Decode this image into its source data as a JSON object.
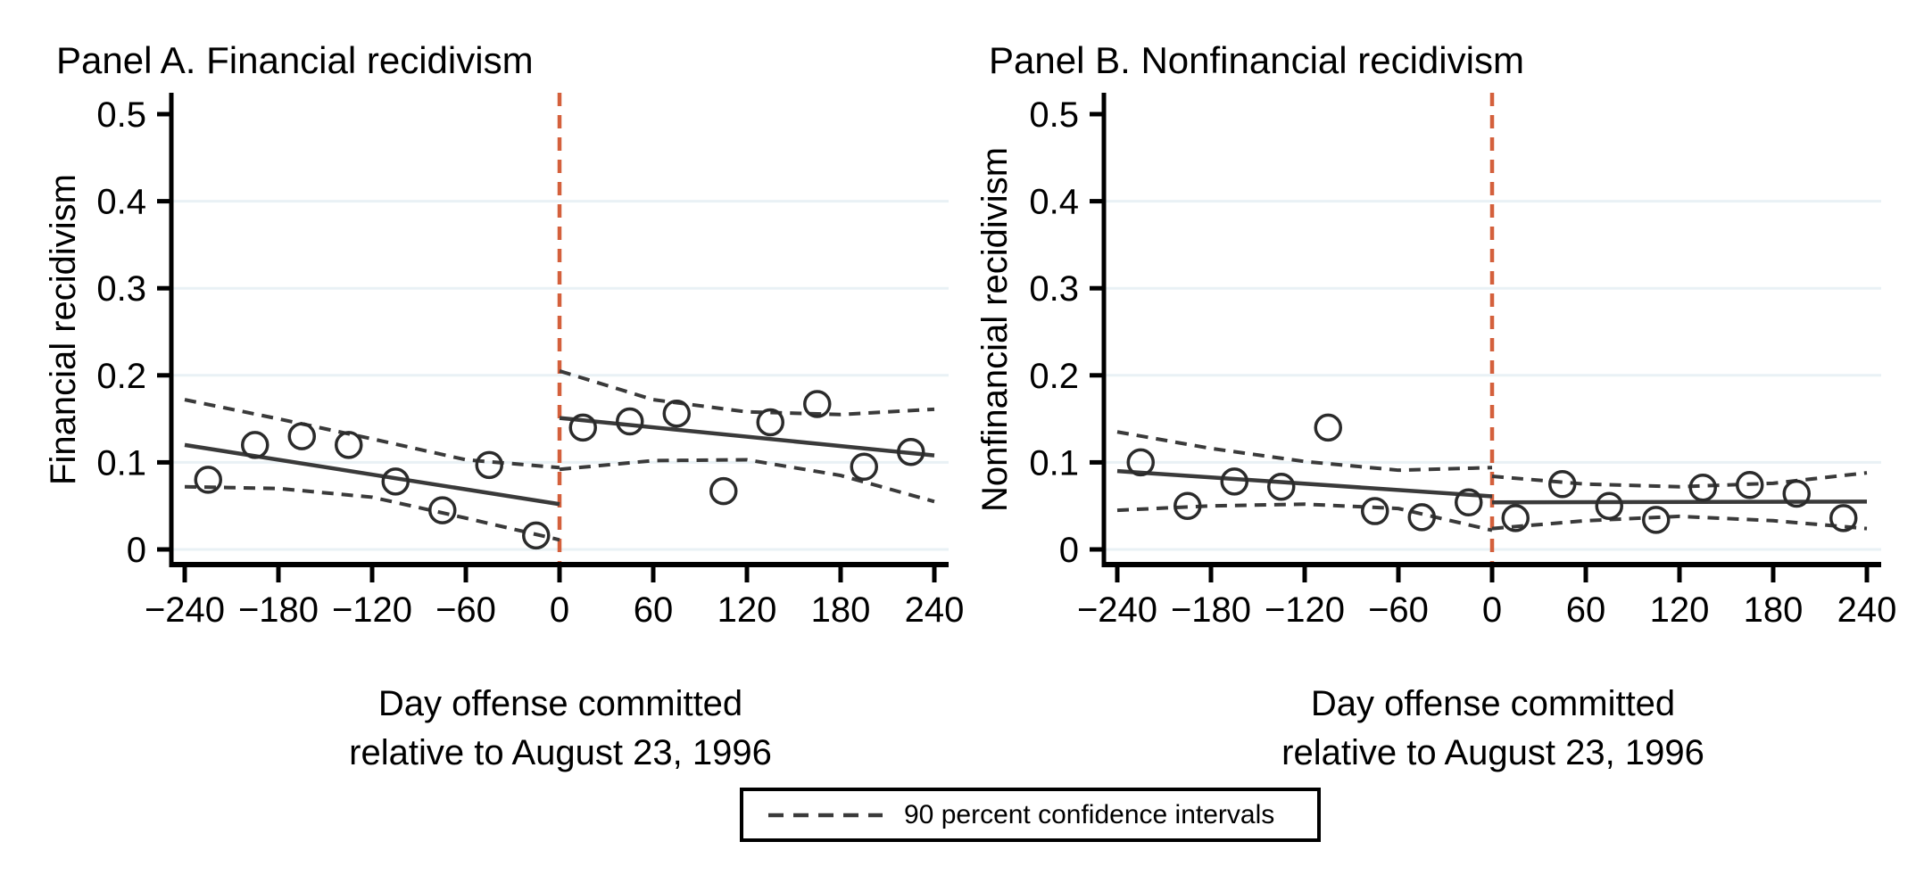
{
  "figure": {
    "legend": {
      "label": "90 percent confidence intervals"
    },
    "colors": {
      "cutoff_line": "#d4603c",
      "series_line": "#3a3a3a",
      "marker": "#2b2b2b",
      "grid_line": "#e9f1f5",
      "axis": "#000000",
      "background": "#ffffff"
    }
  },
  "chart_data": [
    {
      "type": "scatter",
      "panel_label": "Panel A. Financial recidivism",
      "ylabel": "Financial recidivism",
      "xlabel_lines": [
        "Day offense committed",
        "relative to August 23, 1996"
      ],
      "xlim": [
        -249,
        249
      ],
      "ylim": [
        0,
        0.5
      ],
      "xticks": [
        -240,
        -180,
        -120,
        -60,
        0,
        60,
        120,
        180,
        240
      ],
      "xtick_labels": [
        "−240",
        "−180",
        "−120",
        "−60",
        "0",
        "60",
        "120",
        "180",
        "240"
      ],
      "yticks": [
        0,
        0.1,
        0.2,
        0.3,
        0.4,
        0.5
      ],
      "ytick_labels": [
        "0",
        "0.1",
        "0.2",
        "0.3",
        "0.4",
        "0.5"
      ],
      "grid": true,
      "legend_position": "bottom-center",
      "cutoff_x": 0,
      "points": [
        [
          -225,
          0.08
        ],
        [
          -195,
          0.12
        ],
        [
          -165,
          0.13
        ],
        [
          -135,
          0.12
        ],
        [
          -105,
          0.078
        ],
        [
          -75,
          0.045
        ],
        [
          -45,
          0.097
        ],
        [
          -15,
          0.016
        ],
        [
          15,
          0.14
        ],
        [
          45,
          0.147
        ],
        [
          75,
          0.156
        ],
        [
          105,
          0.067
        ],
        [
          135,
          0.146
        ],
        [
          165,
          0.167
        ],
        [
          195,
          0.095
        ],
        [
          225,
          0.112
        ]
      ],
      "fit_lines": [
        {
          "x": [
            -240,
            0
          ],
          "y": [
            0.12,
            0.052
          ]
        },
        {
          "x": [
            0,
            240
          ],
          "y": [
            0.151,
            0.108
          ]
        }
      ],
      "ci_lines": [
        {
          "x": [
            -240,
            -180,
            -120,
            -60,
            0
          ],
          "y": [
            0.172,
            0.15,
            0.127,
            0.103,
            0.094
          ]
        },
        {
          "x": [
            -240,
            -180,
            -120,
            -60,
            0
          ],
          "y": [
            0.072,
            0.07,
            0.06,
            0.036,
            0.011
          ]
        },
        {
          "x": [
            0,
            60,
            120,
            180,
            240
          ],
          "y": [
            0.205,
            0.172,
            0.158,
            0.155,
            0.161
          ]
        },
        {
          "x": [
            0,
            60,
            120,
            180,
            240
          ],
          "y": [
            0.092,
            0.102,
            0.103,
            0.085,
            0.055
          ]
        }
      ]
    },
    {
      "type": "scatter",
      "panel_label": "Panel B. Nonfinancial recidivism",
      "ylabel": "Nonfinancial recidivism",
      "xlabel_lines": [
        "Day offense committed",
        "relative to August 23, 1996"
      ],
      "xlim": [
        -249,
        249
      ],
      "ylim": [
        0,
        0.5
      ],
      "xticks": [
        -240,
        -180,
        -120,
        -60,
        0,
        60,
        120,
        180,
        240
      ],
      "xtick_labels": [
        "−240",
        "−180",
        "−120",
        "−60",
        "0",
        "60",
        "120",
        "180",
        "240"
      ],
      "yticks": [
        0,
        0.1,
        0.2,
        0.3,
        0.4,
        0.5
      ],
      "ytick_labels": [
        "0",
        "0.1",
        "0.2",
        "0.3",
        "0.4",
        "0.5"
      ],
      "grid": true,
      "legend_position": "bottom-center",
      "cutoff_x": 0,
      "points": [
        [
          -225,
          0.1
        ],
        [
          -195,
          0.05
        ],
        [
          -165,
          0.078
        ],
        [
          -135,
          0.072
        ],
        [
          -105,
          0.14
        ],
        [
          -75,
          0.044
        ],
        [
          -45,
          0.037
        ],
        [
          -15,
          0.054
        ],
        [
          15,
          0.036
        ],
        [
          45,
          0.075
        ],
        [
          75,
          0.05
        ],
        [
          105,
          0.034
        ],
        [
          135,
          0.071
        ],
        [
          165,
          0.074
        ],
        [
          195,
          0.064
        ],
        [
          225,
          0.036
        ]
      ],
      "fit_lines": [
        {
          "x": [
            -240,
            0
          ],
          "y": [
            0.09,
            0.061
          ]
        },
        {
          "x": [
            0,
            240
          ],
          "y": [
            0.054,
            0.055
          ]
        }
      ],
      "ci_lines": [
        {
          "x": [
            -240,
            -180,
            -120,
            -60,
            0
          ],
          "y": [
            0.135,
            0.116,
            0.101,
            0.091,
            0.094
          ]
        },
        {
          "x": [
            -240,
            -180,
            -120,
            -60,
            0
          ],
          "y": [
            0.045,
            0.05,
            0.052,
            0.047,
            0.022
          ]
        },
        {
          "x": [
            0,
            60,
            120,
            180,
            240
          ],
          "y": [
            0.084,
            0.075,
            0.072,
            0.076,
            0.088
          ]
        },
        {
          "x": [
            0,
            60,
            120,
            180,
            240
          ],
          "y": [
            0.024,
            0.033,
            0.038,
            0.033,
            0.024
          ]
        }
      ]
    }
  ]
}
